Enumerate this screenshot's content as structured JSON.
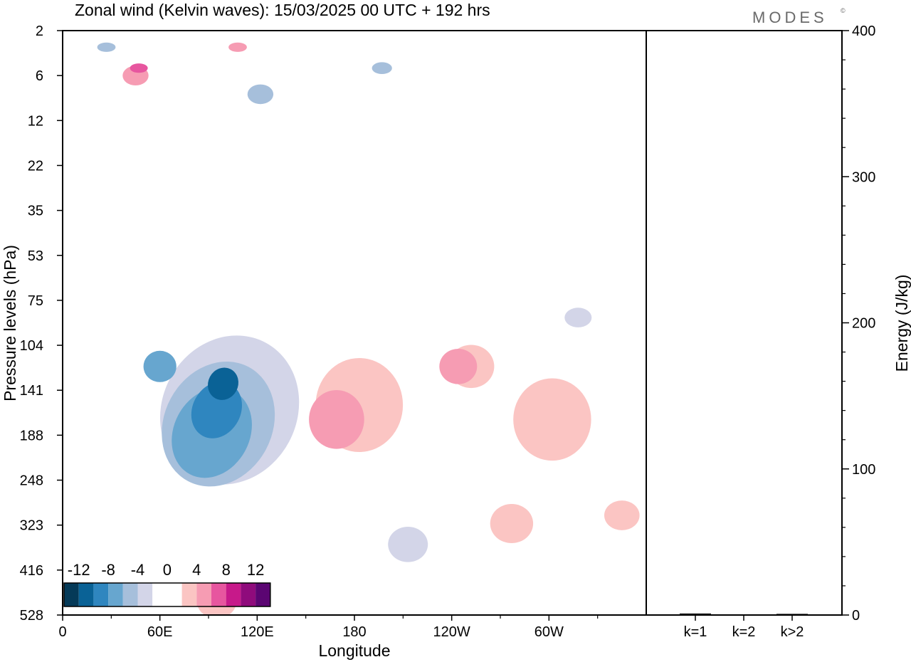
{
  "header": {
    "title": "Zonal wind (Kelvin waves):  15/03/2025  00 UTC  + 192 hrs",
    "brand": "MODES",
    "brand_mark": "©"
  },
  "chart_data": [
    {
      "type": "heatmap",
      "title": "Zonal wind (Kelvin waves):  15/03/2025  00 UTC  + 192 hrs",
      "xlabel": "Longitude",
      "ylabel": "Pressure levels (hPa)",
      "x_ticks": [
        {
          "lon": 0,
          "label": "0"
        },
        {
          "lon": 60,
          "label": "60E"
        },
        {
          "lon": 120,
          "label": "120E"
        },
        {
          "lon": 180,
          "label": "180"
        },
        {
          "lon": 240,
          "label": "120W"
        },
        {
          "lon": 300,
          "label": "60W"
        }
      ],
      "xlim": [
        0,
        360
      ],
      "y_levels": [
        2,
        6,
        12,
        22,
        35,
        53,
        75,
        104,
        141,
        188,
        248,
        323,
        416,
        528
      ],
      "colorbar": {
        "labels": [
          "-12",
          "-8",
          "-4",
          "0",
          "4",
          "8",
          "12"
        ],
        "colors": [
          "#053a58",
          "#0a6296",
          "#2f86bf",
          "#67a6cf",
          "#a6bfdb",
          "#d3d5e8",
          "#ffffff",
          "#ffffff",
          "#fbc5c3",
          "#f69cb3",
          "#e7569f",
          "#c7198a",
          "#8f0b7c",
          "#5b0572"
        ]
      },
      "features": [
        {
          "name": "negative",
          "level": 1,
          "lon": 103,
          "p": 160,
          "ry": 195
        },
        {
          "name": "negative",
          "level": 2,
          "lon": 96,
          "p": 175,
          "ry": 165
        },
        {
          "name": "negative",
          "level": 3,
          "lon": 92,
          "p": 185,
          "ry": 120
        },
        {
          "name": "negative",
          "level": 4,
          "lon": 95,
          "p": 160,
          "ry": 75
        },
        {
          "name": "negative",
          "level": 5,
          "lon": 99,
          "p": 135,
          "ry": 42
        },
        {
          "name": "negative",
          "level": 3,
          "lon": 60,
          "p": 120,
          "ry": 40
        },
        {
          "name": "negative",
          "level": 2,
          "lon": 27,
          "p": 3,
          "ry": 12
        },
        {
          "name": "negative",
          "level": 2,
          "lon": 197,
          "p": 5,
          "ry": 15
        },
        {
          "name": "negative",
          "level": 2,
          "lon": 122,
          "p": 8,
          "ry": 25
        },
        {
          "name": "negative",
          "level": 1,
          "lon": 318,
          "p": 85,
          "ry": 25
        },
        {
          "name": "negative",
          "level": 1,
          "lon": 213,
          "p": 360,
          "ry": 45
        },
        {
          "name": "positive",
          "level": 1,
          "lon": 183,
          "p": 155,
          "ry": 120
        },
        {
          "name": "positive",
          "level": 2,
          "lon": 169,
          "p": 170,
          "ry": 75
        },
        {
          "name": "positive",
          "level": 1,
          "lon": 252,
          "p": 120,
          "ry": 55
        },
        {
          "name": "positive",
          "level": 2,
          "lon": 244,
          "p": 120,
          "ry": 45
        },
        {
          "name": "positive",
          "level": 1,
          "lon": 302,
          "p": 170,
          "ry": 105
        },
        {
          "name": "positive",
          "level": 1,
          "lon": 277,
          "p": 320,
          "ry": 50
        },
        {
          "name": "positive",
          "level": 1,
          "lon": 345,
          "p": 305,
          "ry": 38
        },
        {
          "name": "positive",
          "level": 1,
          "lon": 95,
          "p": 490,
          "ry": 45
        },
        {
          "name": "positive",
          "level": 2,
          "lon": 45,
          "p": 6,
          "ry": 25
        },
        {
          "name": "positive",
          "level": 3,
          "lon": 47,
          "p": 5,
          "ry": 12
        },
        {
          "name": "positive",
          "level": 2,
          "lon": 108,
          "p": 3,
          "ry": 12
        }
      ]
    },
    {
      "type": "bar",
      "categories": [
        "k=1",
        "k=2",
        "k>2"
      ],
      "values": [
        1,
        0.3,
        0.8
      ],
      "ylabel": "Energy (J/kg)",
      "ylim": [
        0,
        400
      ],
      "y_ticks": [
        0,
        100,
        200,
        300,
        400
      ]
    }
  ]
}
